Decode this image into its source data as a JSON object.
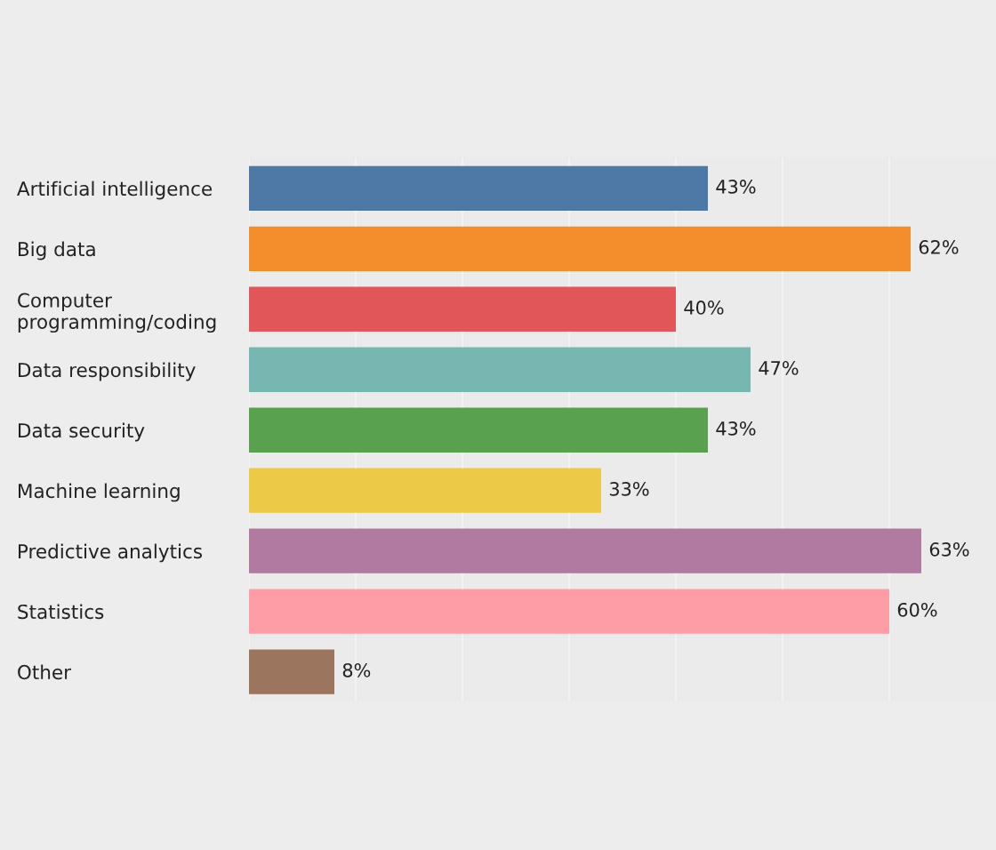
{
  "chart_data": {
    "type": "bar",
    "orientation": "horizontal",
    "categories": [
      "Artificial intelligence",
      "Big data",
      "Computer\nprogramming/coding",
      "Data responsibility",
      "Data security",
      "Machine learning",
      "Predictive analytics",
      "Statistics",
      "Other"
    ],
    "values": [
      43,
      62,
      40,
      47,
      43,
      33,
      63,
      60,
      8
    ],
    "value_labels": [
      "43%",
      "62%",
      "40%",
      "47%",
      "43%",
      "33%",
      "63%",
      "60%",
      "8%"
    ],
    "colors": [
      "#4e79a7",
      "#f28e2b",
      "#e15759",
      "#76b7b2",
      "#59a14f",
      "#edc948",
      "#b07aa1",
      "#ff9da7",
      "#9c755f"
    ],
    "xlim": [
      0,
      70
    ],
    "xticks": [
      {
        "value": 0,
        "label": null
      },
      {
        "value": 10,
        "label": null
      },
      {
        "value": 20,
        "label": null
      },
      {
        "value": 30,
        "label": null
      },
      {
        "value": 40,
        "label": null
      },
      {
        "value": 50,
        "label": null
      },
      {
        "value": 60,
        "label": null
      }
    ],
    "tick_labels": "y",
    "grid": "x"
  }
}
